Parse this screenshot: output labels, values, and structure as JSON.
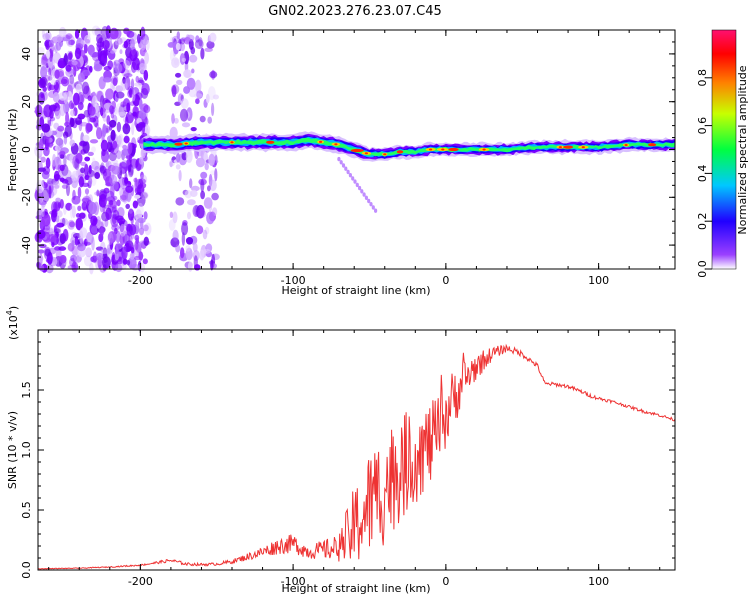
{
  "title": "GN02.2023.276.23.07.C45",
  "chart_data": [
    {
      "type": "heatmap",
      "xlabel": "Height of straight line (km)",
      "ylabel": "Frequency (Hz)",
      "xlim": [
        -267,
        150
      ],
      "ylim": [
        -50,
        50
      ],
      "xticks": [
        -200,
        -100,
        0,
        100
      ],
      "yticks": [
        -40,
        -20,
        0,
        20,
        40
      ],
      "colorbar": {
        "label": "Normalized spectral amplitude",
        "range": [
          0.0,
          1.0
        ],
        "ticks": [
          "0.0",
          "0.2",
          "0.4",
          "0.6",
          "0.8"
        ],
        "colors": [
          "#ffffff",
          "#7a00ff",
          "#0000ff",
          "#00ffff",
          "#00ff00",
          "#ffff00",
          "#ff0000",
          "#ff0066"
        ]
      },
      "ridge": {
        "x": [
          -200,
          -180,
          -160,
          -140,
          -120,
          -100,
          -90,
          -80,
          -70,
          -60,
          -50,
          -40,
          -30,
          -20,
          -10,
          0,
          20,
          40,
          60,
          80,
          100,
          120,
          150
        ],
        "freq": [
          2,
          2,
          3,
          3,
          3,
          3,
          4,
          3,
          2,
          0,
          -2,
          -2,
          -1,
          -1,
          0,
          0,
          0,
          0,
          1,
          1,
          1,
          2,
          2
        ]
      },
      "noise_band": [
        -267,
        -195
      ],
      "noise_band_2": [
        -180,
        -150
      ]
    },
    {
      "type": "line",
      "xlabel": "Height of straight line (km)",
      "ylabel": "SNR (10 * v/v)",
      "scale_label": "(x10",
      "scale_exp": "4",
      "xlim": [
        -267,
        150
      ],
      "ylim": [
        0,
        20000
      ],
      "xticks": [
        -200,
        -100,
        0,
        100
      ],
      "yticks": [
        0,
        5000,
        10000,
        15000
      ],
      "ytick_labels": [
        "0.0",
        "0.5",
        "1.0",
        "1.5"
      ],
      "color": "#ee3333",
      "x": [
        -267,
        -240,
        -220,
        -200,
        -190,
        -180,
        -170,
        -160,
        -150,
        -140,
        -130,
        -120,
        -110,
        -100,
        -90,
        -80,
        -70,
        -60,
        -50,
        -40,
        -30,
        -20,
        -10,
        -5,
        0,
        10,
        20,
        30,
        40,
        50,
        60,
        65,
        70,
        80,
        90,
        95,
        100,
        110,
        120,
        130,
        140,
        150
      ],
      "y": [
        100,
        150,
        250,
        400,
        600,
        800,
        500,
        450,
        500,
        700,
        1100,
        1500,
        2000,
        2200,
        1500,
        1700,
        1800,
        3500,
        5500,
        7000,
        8500,
        9500,
        10500,
        11500,
        13000,
        15500,
        17000,
        18000,
        18500,
        18000,
        17000,
        15500,
        15500,
        15300,
        14800,
        14500,
        14300,
        14000,
        13600,
        13200,
        12900,
        12500
      ],
      "noise": [
        20,
        30,
        40,
        60,
        100,
        150,
        120,
        110,
        120,
        180,
        300,
        450,
        700,
        800,
        600,
        800,
        1200,
        3500,
        4500,
        5000,
        4500,
        4000,
        3500,
        3000,
        3000,
        2000,
        1200,
        600,
        300,
        250,
        200,
        150,
        150,
        150,
        150,
        150,
        150,
        120,
        120,
        120,
        120,
        120
      ]
    }
  ]
}
